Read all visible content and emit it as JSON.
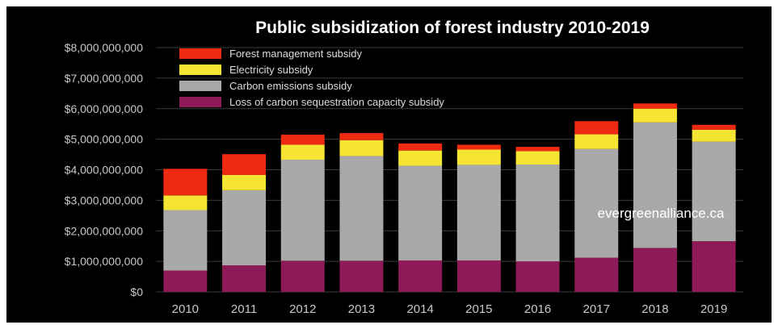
{
  "chart_data": {
    "type": "bar",
    "stacked": true,
    "title": "Public subsidization of forest industry 2010-2019",
    "watermark": "evergreenalliance.ca",
    "xlabel": "",
    "ylabel": "",
    "categories": [
      "2010",
      "2011",
      "2012",
      "2013",
      "2014",
      "2015",
      "2016",
      "2017",
      "2018",
      "2019"
    ],
    "y_ticks": [
      "$0",
      "$1,000,000,000",
      "$2,000,000,000",
      "$3,000,000,000",
      "$4,000,000,000",
      "$5,000,000,000",
      "$6,000,000,000",
      "$7,000,000,000",
      "$8,000,000,000"
    ],
    "ylim": [
      0,
      8000000000
    ],
    "grid": true,
    "legend_position": "top-left",
    "series": [
      {
        "name": "Loss of carbon sequestration capacity subsidy",
        "color": "#8e1a57",
        "values": [
          700000000,
          870000000,
          1020000000,
          1020000000,
          1030000000,
          1030000000,
          1000000000,
          1120000000,
          1440000000,
          1660000000
        ]
      },
      {
        "name": "Carbon emissions subsidy",
        "color": "#a9a9a9",
        "values": [
          1980000000,
          2460000000,
          3310000000,
          3430000000,
          3100000000,
          3130000000,
          3170000000,
          3560000000,
          4110000000,
          3260000000
        ]
      },
      {
        "name": "Electricity subsidy",
        "color": "#f5e431",
        "values": [
          480000000,
          500000000,
          490000000,
          520000000,
          500000000,
          500000000,
          440000000,
          480000000,
          450000000,
          390000000
        ]
      },
      {
        "name": "Forest management subsidy",
        "color": "#ee2a12",
        "values": [
          870000000,
          680000000,
          330000000,
          230000000,
          230000000,
          160000000,
          140000000,
          430000000,
          170000000,
          160000000
        ]
      }
    ],
    "legend_order": [
      "Forest management subsidy",
      "Electricity subsidy",
      "Carbon emissions subsidy",
      "Loss of carbon sequestration capacity subsidy"
    ],
    "colors": {
      "background": "#000000",
      "frame": "#ffffff",
      "text": "#ffffff",
      "axis_text": "#c8c8c8",
      "grid": "#3a3a3a"
    }
  }
}
